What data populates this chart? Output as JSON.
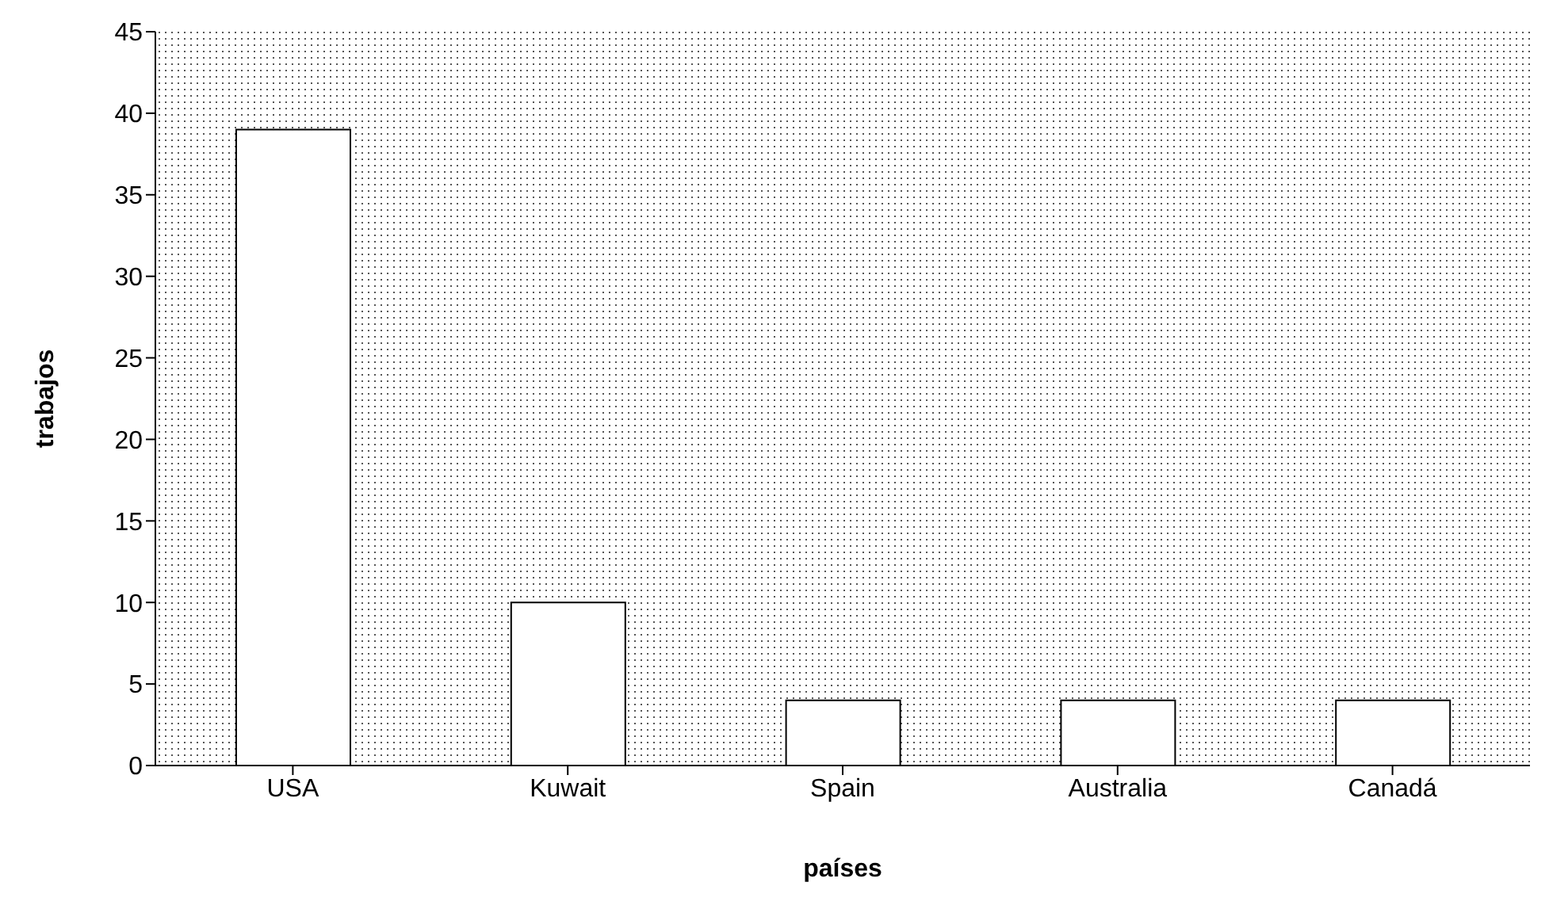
{
  "chart_data": {
    "type": "bar",
    "xlabel": "países",
    "ylabel": "trabajos",
    "categories": [
      "USA",
      "Kuwait",
      "Spain",
      "Australia",
      "Canadá"
    ],
    "values": [
      39,
      10,
      4,
      4,
      4
    ],
    "color": "#ffffff",
    "ylim": [
      0,
      45
    ],
    "yticks": [
      0,
      5,
      10,
      15,
      20,
      25,
      30,
      35,
      40,
      45
    ],
    "grid": false,
    "legend": false
  }
}
